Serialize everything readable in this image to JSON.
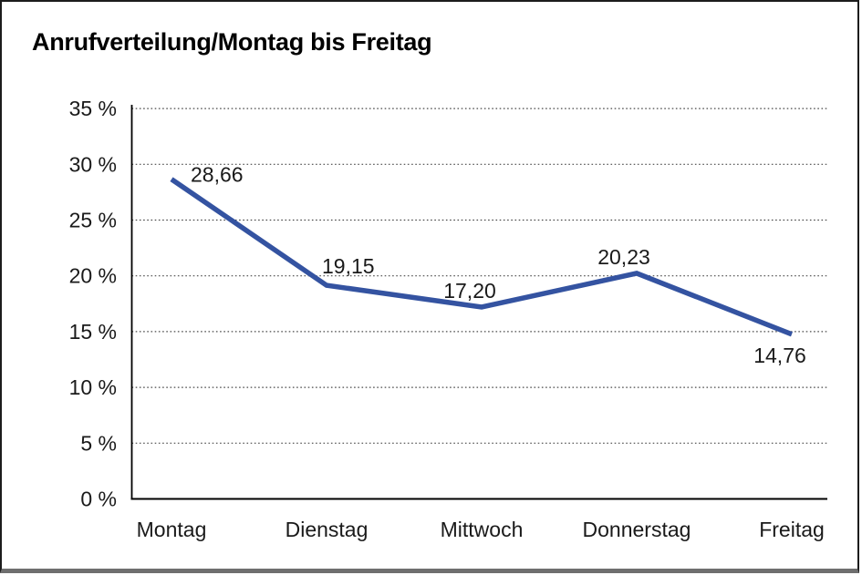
{
  "chart_data": {
    "type": "line",
    "title": "Anrufverteilung/Montag bis Freitag",
    "categories": [
      "Montag",
      "Dienstag",
      "Mittwoch",
      "Donnerstag",
      "Freitag"
    ],
    "values": [
      28.66,
      19.15,
      17.2,
      20.23,
      14.76
    ],
    "point_labels": [
      "28,66",
      "19,15",
      "17,20",
      "20,23",
      "14,76"
    ],
    "y_ticks": [
      "35 %",
      "30 %",
      "25 %",
      "20 %",
      "15 %",
      "10 %",
      "5 %",
      "0 %"
    ],
    "y_tick_values": [
      35,
      30,
      25,
      20,
      15,
      10,
      5,
      0
    ],
    "ylim": [
      0,
      35
    ],
    "y_step": 5,
    "xlabel": "",
    "ylabel": "",
    "legend": "none",
    "grid": "dotted-horizontal",
    "line_color": "#3453a1",
    "axis_color": "#000000",
    "gridline_color": "#4a4a4a",
    "text_color": "#1a1a1a"
  }
}
